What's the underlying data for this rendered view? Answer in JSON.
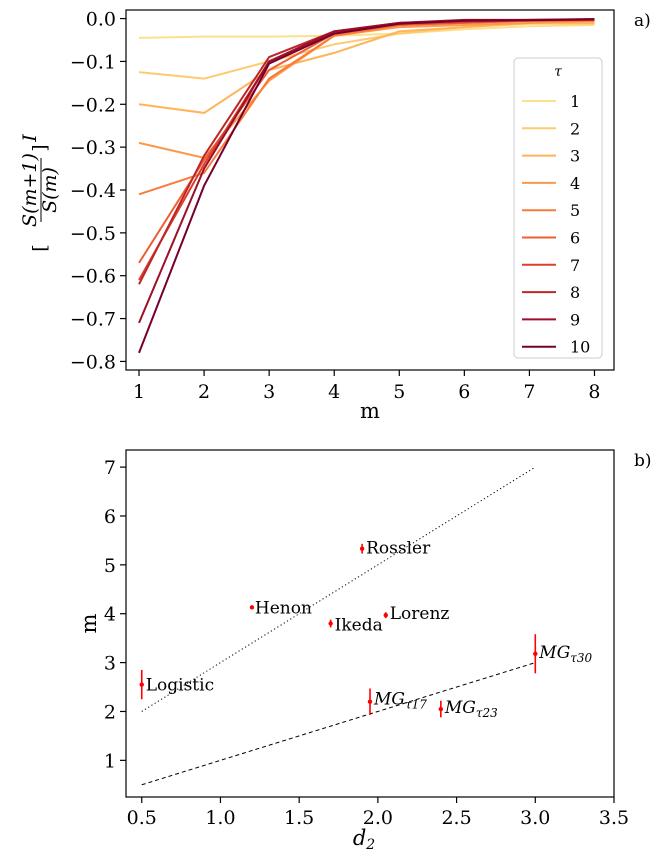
{
  "chart_data": [
    {
      "type": "line",
      "panel_label": "a)",
      "xlabel": "m",
      "ylabel_parts": {
        "open": "[",
        "num": "S(m+1)",
        "den": "S(m)",
        "close": "]",
        "sup": "I"
      },
      "x": [
        1,
        2,
        3,
        4,
        5,
        6,
        7,
        8
      ],
      "xlim": [
        0.8,
        8.3
      ],
      "ylim": [
        -0.82,
        0.02
      ],
      "xticks": [
        "1",
        "2",
        "3",
        "4",
        "5",
        "6",
        "7",
        "8"
      ],
      "yticks": [
        {
          "v": 0.0,
          "label": "0.0"
        },
        {
          "v": -0.1,
          "label": "−0.1"
        },
        {
          "v": -0.2,
          "label": "−0.2"
        },
        {
          "v": -0.3,
          "label": "−0.3"
        },
        {
          "v": -0.4,
          "label": "−0.4"
        },
        {
          "v": -0.5,
          "label": "−0.5"
        },
        {
          "v": -0.6,
          "label": "−0.6"
        },
        {
          "v": -0.7,
          "label": "−0.7"
        },
        {
          "v": -0.8,
          "label": "−0.8"
        }
      ],
      "legend": {
        "title": "τ",
        "position": "right"
      },
      "series": [
        {
          "name": "1",
          "color": "#fde08b",
          "values": [
            -0.045,
            -0.042,
            -0.042,
            -0.04,
            -0.035,
            -0.025,
            -0.018,
            -0.015
          ]
        },
        {
          "name": "2",
          "color": "#fdcb6e",
          "values": [
            -0.125,
            -0.14,
            -0.1,
            -0.06,
            -0.035,
            -0.02,
            -0.012,
            -0.012
          ]
        },
        {
          "name": "3",
          "color": "#fdb45a",
          "values": [
            -0.2,
            -0.22,
            -0.12,
            -0.08,
            -0.03,
            -0.02,
            -0.01,
            -0.01
          ]
        },
        {
          "name": "4",
          "color": "#fc9849",
          "values": [
            -0.29,
            -0.325,
            -0.145,
            -0.04,
            -0.02,
            -0.015,
            -0.01,
            -0.005
          ]
        },
        {
          "name": "5",
          "color": "#f77b3a",
          "values": [
            -0.41,
            -0.36,
            -0.14,
            -0.04,
            -0.015,
            -0.01,
            -0.005,
            -0.005
          ]
        },
        {
          "name": "6",
          "color": "#ee5d33",
          "values": [
            -0.57,
            -0.33,
            -0.12,
            -0.035,
            -0.015,
            -0.01,
            -0.005,
            -0.003
          ]
        },
        {
          "name": "7",
          "color": "#d9402c",
          "values": [
            -0.61,
            -0.34,
            -0.1,
            -0.035,
            -0.012,
            -0.008,
            -0.004,
            -0.003
          ]
        },
        {
          "name": "8",
          "color": "#bd2628",
          "values": [
            -0.62,
            -0.32,
            -0.09,
            -0.03,
            -0.01,
            -0.005,
            -0.003,
            -0.002
          ]
        },
        {
          "name": "9",
          "color": "#9d0f2a",
          "values": [
            -0.71,
            -0.35,
            -0.1,
            -0.03,
            -0.01,
            -0.003,
            -0.003,
            -0.001
          ]
        },
        {
          "name": "10",
          "color": "#75002d",
          "values": [
            -0.78,
            -0.39,
            -0.105,
            -0.035,
            -0.012,
            -0.005,
            -0.004,
            -0.002
          ]
        }
      ]
    },
    {
      "type": "scatter",
      "panel_label": "b)",
      "xlabel": "d",
      "xlabel_sub": "2",
      "ylabel": "m",
      "xlim": [
        0.4,
        3.5
      ],
      "ylim": [
        0.25,
        7.35
      ],
      "xticks": [
        {
          "v": 0.5,
          "label": "0.5"
        },
        {
          "v": 1.0,
          "label": "1.0"
        },
        {
          "v": 1.5,
          "label": "1.5"
        },
        {
          "v": 2.0,
          "label": "2.0"
        },
        {
          "v": 2.5,
          "label": "2.5"
        },
        {
          "v": 3.0,
          "label": "3.0"
        },
        {
          "v": 3.5,
          "label": "3.5"
        }
      ],
      "yticks": [
        {
          "v": 1,
          "label": "1"
        },
        {
          "v": 2,
          "label": "2"
        },
        {
          "v": 3,
          "label": "3"
        },
        {
          "v": 4,
          "label": "4"
        },
        {
          "v": 5,
          "label": "5"
        },
        {
          "v": 6,
          "label": "6"
        },
        {
          "v": 7,
          "label": "7"
        }
      ],
      "marker_color": "#ff0000",
      "points": [
        {
          "label": "Logistic",
          "sub": "",
          "x": 0.5,
          "y": 2.55,
          "yerr": 0.3
        },
        {
          "label": "Henon",
          "sub": "",
          "x": 1.2,
          "y": 4.13,
          "yerr": 0.04
        },
        {
          "label": "Rossler",
          "sub": "",
          "x": 1.9,
          "y": 5.33,
          "yerr": 0.1
        },
        {
          "label": "Ikeda",
          "sub": "",
          "x": 1.7,
          "y": 3.8,
          "yerr": 0.08
        },
        {
          "label": "Lorenz",
          "sub": "",
          "x": 2.05,
          "y": 3.97,
          "yerr": 0.06
        },
        {
          "label": "MG",
          "sub": "τ17",
          "x": 1.95,
          "y": 2.2,
          "yerr": 0.27
        },
        {
          "label": "MG",
          "sub": "τ23",
          "x": 2.4,
          "y": 2.05,
          "yerr": 0.17
        },
        {
          "label": "MG",
          "sub": "τ30",
          "x": 3.0,
          "y": 3.18,
          "yerr": 0.4
        }
      ],
      "fit_lines": [
        {
          "style": "dotted",
          "x": [
            0.5,
            3.0
          ],
          "y": [
            2.0,
            7.0
          ]
        },
        {
          "style": "dashed",
          "x": [
            0.5,
            3.0
          ],
          "y": [
            0.5,
            3.0
          ]
        }
      ]
    }
  ]
}
